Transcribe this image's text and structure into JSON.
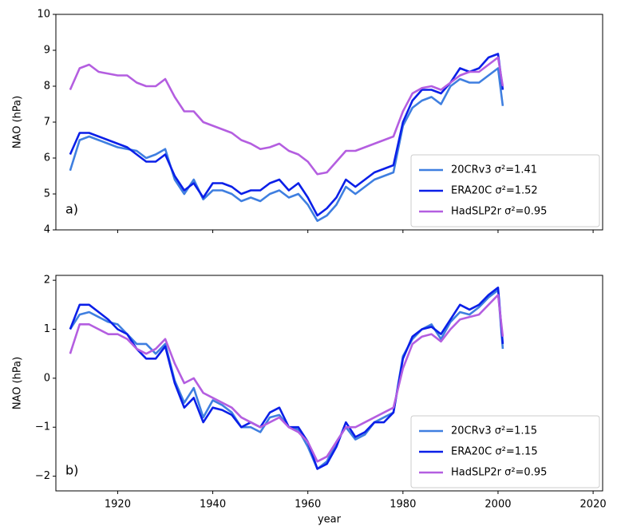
{
  "chart_data": [
    {
      "type": "line",
      "panel_label": "a)",
      "ylabel": "NAO (hPa)",
      "xtick_labels_shown": false,
      "xlim": [
        1907,
        2022
      ],
      "xticks": [
        1920,
        1940,
        1960,
        1980,
        2000,
        2020
      ],
      "ylim": [
        4,
        10
      ],
      "yticks": [
        4,
        5,
        6,
        7,
        8,
        9,
        10
      ],
      "legend": "lower right",
      "x": [
        1910,
        1912,
        1914,
        1916,
        1918,
        1920,
        1922,
        1924,
        1926,
        1928,
        1930,
        1932,
        1934,
        1936,
        1938,
        1940,
        1942,
        1944,
        1946,
        1948,
        1950,
        1952,
        1954,
        1956,
        1958,
        1960,
        1962,
        1964,
        1966,
        1968,
        1970,
        1972,
        1974,
        1976,
        1978,
        1980,
        1982,
        1984,
        1986,
        1988,
        1990,
        1992,
        1994,
        1996,
        1998,
        2000,
        2001
      ],
      "series": [
        {
          "name": "20CRv3 σ²=1.41",
          "color": "#3f7fe0",
          "values": [
            5.65,
            6.5,
            6.6,
            6.5,
            6.4,
            6.3,
            6.25,
            6.2,
            6.0,
            6.1,
            6.25,
            5.4,
            5.0,
            5.4,
            4.85,
            5.1,
            5.1,
            5.0,
            4.8,
            4.9,
            4.8,
            5.0,
            5.1,
            4.9,
            5.0,
            4.7,
            4.25,
            4.4,
            4.7,
            5.2,
            5.0,
            5.2,
            5.4,
            5.5,
            5.6,
            6.9,
            7.4,
            7.6,
            7.7,
            7.5,
            8.0,
            8.2,
            8.1,
            8.1,
            8.3,
            8.5,
            7.45
          ]
        },
        {
          "name": "ERA20C σ²=1.52",
          "color": "#0a1fe8",
          "values": [
            6.1,
            6.7,
            6.7,
            6.6,
            6.5,
            6.4,
            6.3,
            6.1,
            5.9,
            5.9,
            6.1,
            5.5,
            5.1,
            5.3,
            4.9,
            5.3,
            5.3,
            5.2,
            5.0,
            5.1,
            5.1,
            5.3,
            5.4,
            5.1,
            5.3,
            4.9,
            4.4,
            4.6,
            4.9,
            5.4,
            5.2,
            5.4,
            5.6,
            5.7,
            5.8,
            7.0,
            7.6,
            7.9,
            7.9,
            7.8,
            8.1,
            8.5,
            8.4,
            8.5,
            8.8,
            8.9,
            7.9
          ]
        },
        {
          "name": "HadSLP2r σ²=0.95",
          "color": "#b45ee0",
          "values": [
            7.9,
            8.5,
            8.6,
            8.4,
            8.35,
            8.3,
            8.3,
            8.1,
            8.0,
            8.0,
            8.2,
            7.7,
            7.3,
            7.3,
            7.0,
            6.9,
            6.8,
            6.7,
            6.5,
            6.4,
            6.25,
            6.3,
            6.4,
            6.2,
            6.1,
            5.9,
            5.55,
            5.6,
            5.9,
            6.2,
            6.2,
            6.3,
            6.4,
            6.5,
            6.6,
            7.3,
            7.8,
            7.95,
            8.0,
            7.9,
            8.1,
            8.3,
            8.4,
            8.4,
            8.6,
            8.8,
            8.0
          ]
        }
      ]
    },
    {
      "type": "line",
      "panel_label": "b)",
      "ylabel": "NAO (hPa)",
      "xlabel": "year",
      "xtick_labels_shown": true,
      "xlim": [
        1907,
        2022
      ],
      "xticks": [
        1920,
        1940,
        1960,
        1980,
        2000,
        2020
      ],
      "ylim": [
        -2.3,
        2.1
      ],
      "yticks": [
        {
          "value": -2,
          "label": "−2"
        },
        {
          "value": -1,
          "label": "−1"
        },
        0,
        1,
        2
      ],
      "legend": "lower right",
      "x": [
        1910,
        1912,
        1914,
        1916,
        1918,
        1920,
        1922,
        1924,
        1926,
        1928,
        1930,
        1932,
        1934,
        1936,
        1938,
        1940,
        1942,
        1944,
        1946,
        1948,
        1950,
        1952,
        1954,
        1956,
        1958,
        1960,
        1962,
        1964,
        1966,
        1968,
        1970,
        1972,
        1974,
        1976,
        1978,
        1980,
        1982,
        1984,
        1986,
        1988,
        1990,
        1992,
        1994,
        1996,
        1998,
        2000,
        2001
      ],
      "series": [
        {
          "name": "20CRv3 σ²=1.15",
          "color": "#3f7fe0",
          "values": [
            1.0,
            1.3,
            1.35,
            1.25,
            1.15,
            1.1,
            0.9,
            0.7,
            0.7,
            0.5,
            0.7,
            -0.05,
            -0.5,
            -0.2,
            -0.8,
            -0.45,
            -0.55,
            -0.7,
            -1.0,
            -1.0,
            -1.1,
            -0.8,
            -0.75,
            -1.0,
            -1.05,
            -1.4,
            -1.85,
            -1.7,
            -1.3,
            -1.0,
            -1.25,
            -1.15,
            -0.9,
            -0.8,
            -0.7,
            0.45,
            0.8,
            1.0,
            1.1,
            0.8,
            1.15,
            1.35,
            1.3,
            1.45,
            1.65,
            1.8,
            0.6
          ]
        },
        {
          "name": "ERA20C σ²=1.15",
          "color": "#0a1fe8",
          "values": [
            1.0,
            1.5,
            1.5,
            1.35,
            1.2,
            1.0,
            0.9,
            0.6,
            0.4,
            0.4,
            0.65,
            -0.1,
            -0.6,
            -0.4,
            -0.9,
            -0.6,
            -0.65,
            -0.75,
            -1.0,
            -0.9,
            -1.0,
            -0.7,
            -0.6,
            -1.0,
            -1.0,
            -1.3,
            -1.85,
            -1.75,
            -1.4,
            -0.9,
            -1.2,
            -1.1,
            -0.9,
            -0.9,
            -0.7,
            0.4,
            0.85,
            1.0,
            1.05,
            0.9,
            1.2,
            1.5,
            1.4,
            1.5,
            1.7,
            1.85,
            0.7
          ]
        },
        {
          "name": "HadSLP2r σ²=0.95",
          "color": "#b45ee0",
          "values": [
            0.5,
            1.1,
            1.1,
            1.0,
            0.9,
            0.9,
            0.8,
            0.6,
            0.5,
            0.6,
            0.8,
            0.3,
            -0.1,
            0.0,
            -0.3,
            -0.4,
            -0.5,
            -0.6,
            -0.8,
            -0.9,
            -1.0,
            -0.9,
            -0.8,
            -1.0,
            -1.1,
            -1.3,
            -1.7,
            -1.6,
            -1.3,
            -1.0,
            -1.0,
            -0.9,
            -0.8,
            -0.7,
            -0.6,
            0.2,
            0.7,
            0.85,
            0.9,
            0.75,
            1.0,
            1.2,
            1.25,
            1.3,
            1.5,
            1.7,
            0.85
          ]
        }
      ]
    }
  ]
}
